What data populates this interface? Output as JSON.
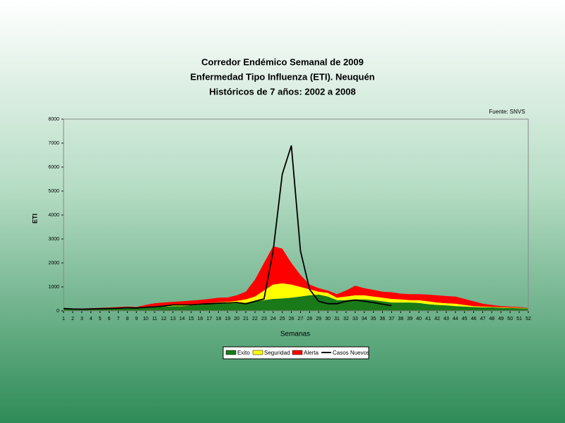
{
  "chart_data": {
    "type": "stacked-area-line",
    "title": [
      "Corredor Endémico Semanal de 2009",
      "Enfermedad Tipo Influenza (ETI).  Neuquén",
      "Históricos de 7 años: 2002 a 2008"
    ],
    "source": "Fuente: SNVS",
    "x_label": "Semanas",
    "y_label": "ETI",
    "x": [
      1,
      2,
      3,
      4,
      5,
      6,
      7,
      8,
      9,
      10,
      11,
      12,
      13,
      14,
      15,
      16,
      17,
      18,
      19,
      20,
      21,
      22,
      23,
      24,
      25,
      26,
      27,
      28,
      29,
      30,
      31,
      32,
      33,
      34,
      35,
      36,
      37,
      38,
      39,
      40,
      41,
      42,
      43,
      44,
      45,
      46,
      47,
      48,
      49,
      50,
      51,
      52
    ],
    "xlim": [
      1,
      52
    ],
    "ylim": [
      0,
      8000
    ],
    "yticks": [
      0,
      1000,
      2000,
      3000,
      4000,
      5000,
      6000,
      7000,
      8000
    ],
    "series": [
      {
        "name": "Exito",
        "color": "#1a7a1a",
        "kind": "area",
        "values": [
          100,
          80,
          80,
          90,
          100,
          110,
          120,
          130,
          120,
          130,
          150,
          170,
          200,
          200,
          220,
          250,
          280,
          300,
          300,
          320,
          330,
          400,
          450,
          500,
          520,
          550,
          600,
          650,
          680,
          600,
          450,
          450,
          480,
          480,
          450,
          400,
          350,
          350,
          350,
          330,
          280,
          250,
          230,
          200,
          180,
          160,
          150,
          150,
          130,
          120,
          110,
          100
        ]
      },
      {
        "name": "Seguridad",
        "color": "#ffff00",
        "kind": "area",
        "values": [
          10,
          10,
          10,
          10,
          10,
          10,
          10,
          10,
          10,
          20,
          30,
          30,
          30,
          40,
          40,
          40,
          50,
          60,
          80,
          100,
          150,
          200,
          400,
          600,
          630,
          550,
          400,
          250,
          120,
          150,
          100,
          150,
          170,
          170,
          150,
          150,
          150,
          130,
          100,
          120,
          120,
          100,
          90,
          100,
          70,
          40,
          30,
          20,
          20,
          20,
          20,
          10
        ]
      },
      {
        "name": "Alerta",
        "color": "#ff0000",
        "kind": "area",
        "values": [
          10,
          10,
          10,
          10,
          20,
          20,
          30,
          40,
          30,
          100,
          140,
          150,
          150,
          160,
          170,
          170,
          170,
          190,
          180,
          230,
          320,
          700,
          1150,
          1600,
          1450,
          900,
          500,
          200,
          150,
          100,
          150,
          250,
          400,
          300,
          280,
          250,
          280,
          240,
          250,
          250,
          280,
          300,
          300,
          300,
          250,
          200,
          120,
          80,
          50,
          40,
          30,
          10
        ]
      },
      {
        "name": "Casos Nuevos",
        "color": "#000000",
        "kind": "line",
        "values": [
          100,
          80,
          70,
          80,
          90,
          100,
          110,
          130,
          120,
          150,
          170,
          200,
          250,
          250,
          250,
          280,
          300,
          320,
          330,
          350,
          300,
          400,
          500,
          2500,
          5700,
          6900,
          2500,
          900,
          400,
          300,
          300,
          400,
          450,
          400,
          350,
          280,
          220,
          null,
          null,
          null,
          null,
          null,
          null,
          null,
          null,
          null,
          null,
          null,
          null,
          null,
          null,
          null
        ]
      }
    ]
  }
}
